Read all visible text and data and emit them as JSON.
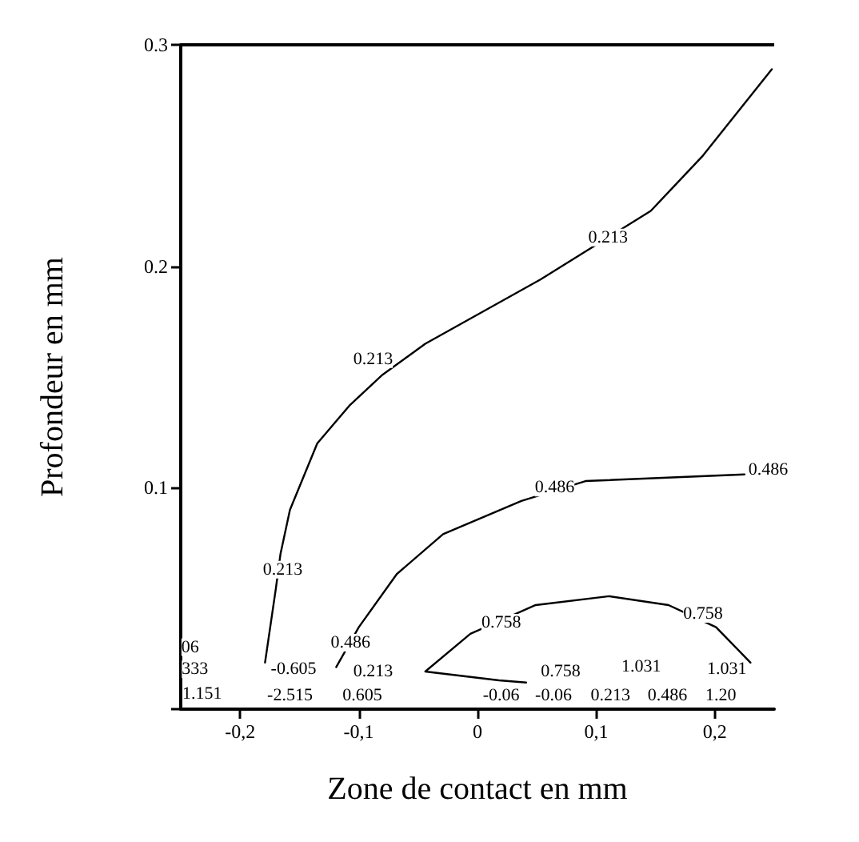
{
  "chart_data": {
    "type": "line",
    "xlabel": "Zone de contact en mm",
    "ylabel": "Profondeur en mm",
    "xlim": [
      -0.25,
      0.25
    ],
    "ylim": [
      0,
      0.3
    ],
    "xticks": [
      {
        "value": -0.2,
        "label": "-0,2"
      },
      {
        "value": -0.1,
        "label": "-0,1"
      },
      0,
      {
        "value": 0.1,
        "label": "0,1"
      },
      {
        "value": 0.2,
        "label": "0,2"
      }
    ],
    "yticks": [
      {
        "value": 0,
        "label": null
      },
      0.1,
      0.2,
      0.3
    ],
    "grid": false,
    "marker": "none",
    "line_style": "solid",
    "series": [
      {
        "color": "#000000",
        "x": [
          -0.179,
          -0.17,
          -0.166,
          -0.158,
          -0.135,
          -0.108,
          -0.08,
          -0.044,
          0.053,
          0.092,
          0.146,
          0.19,
          0.248
        ],
        "values": [
          0.021,
          0.054,
          0.07,
          0.09,
          0.12,
          0.137,
          0.151,
          0.165,
          0.194,
          0.207,
          0.225,
          0.25,
          0.289
        ]
      },
      {
        "color": "#000000",
        "x": [
          -0.119,
          -0.1,
          -0.068,
          -0.029,
          0.037,
          0.091,
          0.225
        ],
        "values": [
          0.019,
          0.037,
          0.061,
          0.079,
          0.094,
          0.103,
          0.106
        ]
      },
      {
        "color": "#000000",
        "x": [
          0.041,
          0.018,
          -0.044,
          -0.006,
          0.049,
          0.111,
          0.161,
          0.201,
          0.23
        ],
        "values": [
          0.012,
          0.013,
          0.017,
          0.034,
          0.047,
          0.051,
          0.047,
          0.037,
          0.021
        ]
      }
    ],
    "annotations": [
      {
        "text": "0.213",
        "x": 0.11,
        "y": 0.213
      },
      {
        "text": "0.213",
        "x": -0.088,
        "y": 0.158
      },
      {
        "text": "0.213",
        "x": -0.164,
        "y": 0.063
      },
      {
        "text": "0.486",
        "x": 0.065,
        "y": 0.1
      },
      {
        "text": "0.486",
        "x": 0.245,
        "y": 0.108
      },
      {
        "text": "0.486",
        "x": -0.107,
        "y": 0.03
      },
      {
        "text": "0.758",
        "x": 0.02,
        "y": 0.039
      },
      {
        "text": "0.758",
        "x": 0.19,
        "y": 0.043
      },
      {
        "text": "06",
        "x": -0.242,
        "y": 0.028
      },
      {
        "text": "333",
        "x": -0.238,
        "y": 0.018
      },
      {
        "text": "1.151",
        "x": -0.232,
        "y": 0.007
      },
      {
        "text": "-0.605",
        "x": -0.155,
        "y": 0.018
      },
      {
        "text": "0.213",
        "x": -0.088,
        "y": 0.017
      },
      {
        "text": "-2.515",
        "x": -0.158,
        "y": 0.006
      },
      {
        "text": "0.605",
        "x": -0.097,
        "y": 0.006
      },
      {
        "text": "0.758",
        "x": 0.07,
        "y": 0.017
      },
      {
        "text": "1.031",
        "x": 0.138,
        "y": 0.019
      },
      {
        "text": "1.031",
        "x": 0.21,
        "y": 0.018
      },
      {
        "text": "-0.06",
        "x": 0.02,
        "y": 0.006
      },
      {
        "text": "-0.06",
        "x": 0.064,
        "y": 0.006
      },
      {
        "text": "0.213",
        "x": 0.112,
        "y": 0.006
      },
      {
        "text": "0.486",
        "x": 0.16,
        "y": 0.006
      },
      {
        "text": "1.20",
        "x": 0.205,
        "y": 0.006
      }
    ]
  }
}
